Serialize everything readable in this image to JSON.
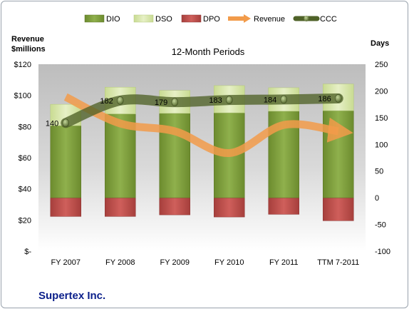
{
  "chart_data": {
    "type": "bar",
    "title": "12-Month Periods",
    "left_axis_label_line1": "Revenue",
    "left_axis_label_line2": "$millions",
    "right_axis_label": "Days",
    "company": "Supertex Inc.",
    "categories": [
      "FY 2007",
      "FY 2008",
      "FY 2009",
      "FY 2010",
      "FY 2011",
      "TTM 7-2011"
    ],
    "left_ylim": [
      0,
      120
    ],
    "left_ticks": [
      {
        "v": 0,
        "label": "$-"
      },
      {
        "v": 20,
        "label": "$20"
      },
      {
        "v": 40,
        "label": "$40"
      },
      {
        "v": 60,
        "label": "$60"
      },
      {
        "v": 80,
        "label": "$80"
      },
      {
        "v": 100,
        "label": "$100"
      },
      {
        "v": 120,
        "label": "$120"
      }
    ],
    "right_ylim": [
      -100,
      250
    ],
    "right_ticks": [
      {
        "v": -100,
        "label": "-100"
      },
      {
        "v": -50,
        "label": "-50"
      },
      {
        "v": 0,
        "label": "0"
      },
      {
        "v": 50,
        "label": "50"
      },
      {
        "v": 100,
        "label": "100"
      },
      {
        "v": 150,
        "label": "150"
      },
      {
        "v": 200,
        "label": "200"
      },
      {
        "v": 250,
        "label": "250"
      }
    ],
    "legend": [
      "DIO",
      "DSO",
      "DPO",
      "Revenue",
      "CCC"
    ],
    "series": [
      {
        "name": "DIO",
        "axis": "right",
        "values": [
          135,
          157,
          158,
          159,
          162,
          163
        ]
      },
      {
        "name": "DSO",
        "axis": "right",
        "values": [
          40,
          50,
          43,
          51,
          44,
          50
        ]
      },
      {
        "name": "DPO",
        "axis": "right",
        "values": [
          -35,
          -35,
          -32,
          -36,
          -31,
          -43
        ]
      },
      {
        "name": "Revenue",
        "axis": "left",
        "values": [
          99,
          82,
          77,
          63,
          81,
          77
        ]
      },
      {
        "name": "CCC",
        "axis": "right",
        "values": [
          140,
          182,
          179,
          183,
          184,
          186
        ],
        "labels": [
          "140",
          "182",
          "179",
          "183",
          "184",
          "186"
        ]
      }
    ],
    "colors": {
      "DIO": "#7a9a3a",
      "DSO": "#d7e6a8",
      "DPO": "#c0504d",
      "Revenue": "#f29b4a",
      "CCC": "#4f6228",
      "plot_background_top": "#bfbfbf",
      "plot_background_bottom": "#ffffff"
    },
    "legend_position": "top",
    "grid": false
  }
}
